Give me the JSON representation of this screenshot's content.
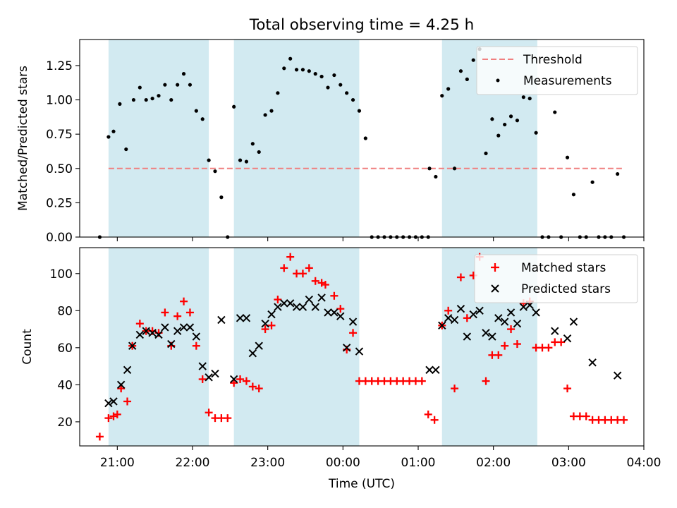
{
  "figure": {
    "title": "Total observing time = 4.25 h",
    "xlabel": "Time (UTC)"
  },
  "colors": {
    "shade": "#add8e6",
    "threshold": "#f08080",
    "matched": "#ff0000",
    "predicted": "#000000",
    "measurements": "#000000"
  },
  "chart_data": [
    {
      "type": "scatter",
      "panel": "top",
      "ylabel": "Matched/Predicted stars",
      "xlim": [
        "20:30",
        "04:00"
      ],
      "ylim": [
        0,
        1.44
      ],
      "x_ticks": [
        "21:00",
        "22:00",
        "23:00",
        "00:00",
        "01:00",
        "02:00",
        "03:00",
        "04:00"
      ],
      "y_ticks": [
        "0.00",
        "0.25",
        "0.50",
        "0.75",
        "1.00",
        "1.25"
      ],
      "shaded_intervals": [
        [
          "20:53",
          "22:13"
        ],
        [
          "22:33",
          "00:13"
        ],
        [
          "01:19",
          "02:35"
        ]
      ],
      "threshold": {
        "name": "Threshold",
        "value": 0.5,
        "x_range": [
          "20:53",
          "03:44"
        ]
      },
      "legend": {
        "placement": "top-right",
        "entries": [
          "Threshold",
          "Measurements"
        ]
      },
      "series": [
        {
          "name": "Measurements",
          "points": [
            [
              "20:46",
              0.0
            ],
            [
              "20:53",
              0.73
            ],
            [
              "20:57",
              0.77
            ],
            [
              "21:02",
              0.97
            ],
            [
              "21:07",
              0.64
            ],
            [
              "21:13",
              1.0
            ],
            [
              "21:18",
              1.09
            ],
            [
              "21:23",
              1.0
            ],
            [
              "21:28",
              1.01
            ],
            [
              "21:33",
              1.03
            ],
            [
              "21:38",
              1.11
            ],
            [
              "21:43",
              1.0
            ],
            [
              "21:48",
              1.11
            ],
            [
              "21:53",
              1.19
            ],
            [
              "21:58",
              1.11
            ],
            [
              "22:03",
              0.92
            ],
            [
              "22:08",
              0.86
            ],
            [
              "22:13",
              0.56
            ],
            [
              "22:18",
              0.48
            ],
            [
              "22:23",
              0.29
            ],
            [
              "22:28",
              0.0
            ],
            [
              "22:33",
              0.95
            ],
            [
              "22:38",
              0.56
            ],
            [
              "22:43",
              0.55
            ],
            [
              "22:48",
              0.68
            ],
            [
              "22:53",
              0.62
            ],
            [
              "22:58",
              0.89
            ],
            [
              "23:03",
              0.92
            ],
            [
              "23:08",
              1.05
            ],
            [
              "23:13",
              1.23
            ],
            [
              "23:18",
              1.3
            ],
            [
              "23:23",
              1.22
            ],
            [
              "23:28",
              1.22
            ],
            [
              "23:33",
              1.21
            ],
            [
              "23:38",
              1.19
            ],
            [
              "23:43",
              1.17
            ],
            [
              "23:48",
              1.09
            ],
            [
              "23:53",
              1.18
            ],
            [
              "23:58",
              1.11
            ],
            [
              "00:03",
              1.05
            ],
            [
              "00:08",
              1.0
            ],
            [
              "00:13",
              0.92
            ],
            [
              "00:18",
              0.72
            ],
            [
              "00:23",
              0.0
            ],
            [
              "00:28",
              0.0
            ],
            [
              "00:33",
              0.0
            ],
            [
              "00:38",
              0.0
            ],
            [
              "00:43",
              0.0
            ],
            [
              "00:48",
              0.0
            ],
            [
              "00:53",
              0.0
            ],
            [
              "00:58",
              0.0
            ],
            [
              "01:03",
              0.0
            ],
            [
              "01:08",
              0.0
            ],
            [
              "01:09",
              0.5
            ],
            [
              "01:14",
              0.44
            ],
            [
              "01:19",
              1.03
            ],
            [
              "01:24",
              1.08
            ],
            [
              "01:29",
              0.5
            ],
            [
              "01:34",
              1.21
            ],
            [
              "01:39",
              1.15
            ],
            [
              "01:44",
              1.29
            ],
            [
              "01:49",
              1.37
            ],
            [
              "01:54",
              0.61
            ],
            [
              "01:59",
              0.86
            ],
            [
              "02:04",
              0.74
            ],
            [
              "02:09",
              0.82
            ],
            [
              "02:14",
              0.88
            ],
            [
              "02:19",
              0.85
            ],
            [
              "02:24",
              1.02
            ],
            [
              "02:29",
              1.01
            ],
            [
              "02:34",
              0.76
            ],
            [
              "02:39",
              0.0
            ],
            [
              "02:44",
              0.0
            ],
            [
              "02:49",
              0.91
            ],
            [
              "02:54",
              0.0
            ],
            [
              "02:59",
              0.58
            ],
            [
              "03:04",
              0.31
            ],
            [
              "03:09",
              0.0
            ],
            [
              "03:14",
              0.0
            ],
            [
              "03:19",
              0.4
            ],
            [
              "03:24",
              0.0
            ],
            [
              "03:29",
              0.0
            ],
            [
              "03:34",
              0.0
            ],
            [
              "03:39",
              0.46
            ],
            [
              "03:44",
              0.0
            ]
          ]
        }
      ]
    },
    {
      "type": "scatter",
      "panel": "bottom",
      "ylabel": "Count",
      "xlim": [
        "20:30",
        "04:00"
      ],
      "ylim": [
        7,
        114
      ],
      "x_ticks": [
        "21:00",
        "22:00",
        "23:00",
        "00:00",
        "01:00",
        "02:00",
        "03:00",
        "04:00"
      ],
      "y_ticks": [
        "20",
        "40",
        "60",
        "80",
        "100"
      ],
      "shaded_intervals": [
        [
          "20:53",
          "22:13"
        ],
        [
          "22:33",
          "00:13"
        ],
        [
          "01:19",
          "02:35"
        ]
      ],
      "legend": {
        "placement": "top-right",
        "entries": [
          "Matched stars",
          "Predicted stars"
        ]
      },
      "series": [
        {
          "name": "Matched stars",
          "marker": "plus",
          "points": [
            [
              "20:46",
              12
            ],
            [
              "20:53",
              22
            ],
            [
              "20:57",
              23
            ],
            [
              "21:00",
              24
            ],
            [
              "21:03",
              38
            ],
            [
              "21:08",
              31
            ],
            [
              "21:12",
              61
            ],
            [
              "21:18",
              73
            ],
            [
              "21:23",
              69
            ],
            [
              "21:28",
              69
            ],
            [
              "21:33",
              68
            ],
            [
              "21:38",
              79
            ],
            [
              "21:43",
              61
            ],
            [
              "21:48",
              77
            ],
            [
              "21:53",
              85
            ],
            [
              "21:58",
              79
            ],
            [
              "22:03",
              61
            ],
            [
              "22:08",
              43
            ],
            [
              "22:13",
              25
            ],
            [
              "22:18",
              22
            ],
            [
              "22:23",
              22
            ],
            [
              "22:28",
              22
            ],
            [
              "22:33",
              41
            ],
            [
              "22:38",
              43
            ],
            [
              "22:43",
              42
            ],
            [
              "22:48",
              39
            ],
            [
              "22:53",
              38
            ],
            [
              "22:58",
              70
            ],
            [
              "23:03",
              72
            ],
            [
              "23:08",
              86
            ],
            [
              "23:13",
              103
            ],
            [
              "23:18",
              109
            ],
            [
              "23:23",
              100
            ],
            [
              "23:28",
              100
            ],
            [
              "23:33",
              103
            ],
            [
              "23:38",
              96
            ],
            [
              "23:43",
              95
            ],
            [
              "23:46",
              94
            ],
            [
              "23:53",
              88
            ],
            [
              "23:58",
              81
            ],
            [
              "00:03",
              59
            ],
            [
              "00:08",
              68
            ],
            [
              "00:13",
              42
            ],
            [
              "00:18",
              42
            ],
            [
              "00:23",
              42
            ],
            [
              "00:28",
              42
            ],
            [
              "00:33",
              42
            ],
            [
              "00:38",
              42
            ],
            [
              "00:43",
              42
            ],
            [
              "00:48",
              42
            ],
            [
              "00:53",
              42
            ],
            [
              "00:58",
              42
            ],
            [
              "01:03",
              42
            ],
            [
              "01:08",
              24
            ],
            [
              "01:13",
              21
            ],
            [
              "01:19",
              72
            ],
            [
              "01:24",
              80
            ],
            [
              "01:29",
              38
            ],
            [
              "01:34",
              98
            ],
            [
              "01:39",
              76
            ],
            [
              "01:44",
              99
            ],
            [
              "01:49",
              109
            ],
            [
              "01:54",
              42
            ],
            [
              "01:59",
              56
            ],
            [
              "02:04",
              56
            ],
            [
              "02:09",
              61
            ],
            [
              "02:14",
              70
            ],
            [
              "02:19",
              62
            ],
            [
              "02:24",
              84
            ],
            [
              "02:29",
              85
            ],
            [
              "02:34",
              60
            ],
            [
              "02:39",
              60
            ],
            [
              "02:44",
              60
            ],
            [
              "02:49",
              63
            ],
            [
              "02:54",
              63
            ],
            [
              "02:59",
              38
            ],
            [
              "03:04",
              23
            ],
            [
              "03:09",
              23
            ],
            [
              "03:14",
              23
            ],
            [
              "03:19",
              21
            ],
            [
              "03:24",
              21
            ],
            [
              "03:29",
              21
            ],
            [
              "03:34",
              21
            ],
            [
              "03:39",
              21
            ],
            [
              "03:44",
              21
            ]
          ]
        },
        {
          "name": "Predicted stars",
          "marker": "x",
          "points": [
            [
              "20:53",
              30
            ],
            [
              "20:57",
              31
            ],
            [
              "21:03",
              40
            ],
            [
              "21:08",
              48
            ],
            [
              "21:12",
              61
            ],
            [
              "21:18",
              67
            ],
            [
              "21:23",
              69
            ],
            [
              "21:28",
              68
            ],
            [
              "21:33",
              67
            ],
            [
              "21:38",
              71
            ],
            [
              "21:43",
              62
            ],
            [
              "21:48",
              69
            ],
            [
              "21:53",
              71
            ],
            [
              "21:58",
              71
            ],
            [
              "22:03",
              66
            ],
            [
              "22:08",
              50
            ],
            [
              "22:13",
              44
            ],
            [
              "22:18",
              46
            ],
            [
              "22:23",
              75
            ],
            [
              "22:33",
              43
            ],
            [
              "22:38",
              76
            ],
            [
              "22:43",
              76
            ],
            [
              "22:48",
              57
            ],
            [
              "22:53",
              61
            ],
            [
              "22:58",
              73
            ],
            [
              "23:03",
              78
            ],
            [
              "23:08",
              82
            ],
            [
              "23:13",
              84
            ],
            [
              "23:18",
              84
            ],
            [
              "23:23",
              82
            ],
            [
              "23:28",
              82
            ],
            [
              "23:33",
              86
            ],
            [
              "23:38",
              82
            ],
            [
              "23:43",
              87
            ],
            [
              "23:48",
              79
            ],
            [
              "23:53",
              79
            ],
            [
              "23:58",
              77
            ],
            [
              "00:03",
              60
            ],
            [
              "00:08",
              74
            ],
            [
              "00:13",
              58
            ],
            [
              "01:09",
              48
            ],
            [
              "01:14",
              48
            ],
            [
              "01:19",
              72
            ],
            [
              "01:24",
              76
            ],
            [
              "01:29",
              75
            ],
            [
              "01:34",
              81
            ],
            [
              "01:39",
              66
            ],
            [
              "01:44",
              78
            ],
            [
              "01:49",
              80
            ],
            [
              "01:54",
              68
            ],
            [
              "01:59",
              66
            ],
            [
              "02:04",
              76
            ],
            [
              "02:09",
              74
            ],
            [
              "02:14",
              79
            ],
            [
              "02:19",
              73
            ],
            [
              "02:24",
              82
            ],
            [
              "02:29",
              83
            ],
            [
              "02:34",
              79
            ],
            [
              "02:49",
              69
            ],
            [
              "02:59",
              65
            ],
            [
              "03:04",
              74
            ],
            [
              "03:19",
              52
            ],
            [
              "03:39",
              45
            ]
          ]
        }
      ]
    }
  ]
}
